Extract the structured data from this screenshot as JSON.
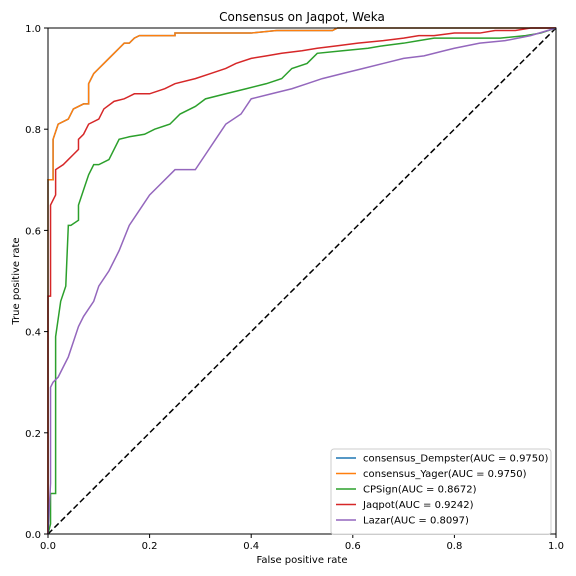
{
  "chart_data": {
    "type": "line",
    "title": "Consensus on Jaqpot, Weka",
    "xlabel": "False positive rate",
    "ylabel": "True positive rate",
    "xlim": [
      0,
      1
    ],
    "ylim": [
      0,
      1
    ],
    "xticks": [
      "0.0",
      "0.2",
      "0.4",
      "0.6",
      "0.8",
      "1.0"
    ],
    "yticks": [
      "0.0",
      "0.2",
      "0.4",
      "0.6",
      "0.8",
      "1.0"
    ],
    "grid": false,
    "legend_position": "lower-right",
    "diagonal": {
      "x": [
        0,
        1
      ],
      "y": [
        0,
        1
      ],
      "color": "#000000",
      "style": "dashed"
    },
    "series": [
      {
        "name": "consensus_Dempster(AUC = 0.9750)",
        "color": "#1f77b4",
        "x": [
          0,
          0,
          0.01,
          0.01,
          0.02,
          0.04,
          0.05,
          0.07,
          0.08,
          0.08,
          0.09,
          0.1,
          0.11,
          0.13,
          0.14,
          0.15,
          0.16,
          0.17,
          0.18,
          0.19,
          0.2,
          0.25,
          0.25,
          0.4,
          0.45,
          0.56,
          0.57,
          0.8,
          1.0
        ],
        "y": [
          0,
          0.7,
          0.7,
          0.78,
          0.81,
          0.82,
          0.84,
          0.85,
          0.85,
          0.89,
          0.91,
          0.92,
          0.93,
          0.95,
          0.96,
          0.97,
          0.97,
          0.98,
          0.985,
          0.985,
          0.985,
          0.985,
          0.99,
          0.99,
          0.995,
          0.995,
          1.0,
          1.0,
          1.0
        ]
      },
      {
        "name": "consensus_Yager(AUC = 0.9750)",
        "color": "#ff7f0e",
        "x": [
          0,
          0,
          0.01,
          0.01,
          0.02,
          0.04,
          0.05,
          0.07,
          0.08,
          0.08,
          0.09,
          0.1,
          0.11,
          0.13,
          0.14,
          0.15,
          0.16,
          0.17,
          0.18,
          0.19,
          0.2,
          0.25,
          0.25,
          0.4,
          0.45,
          0.56,
          0.57,
          0.8,
          1.0
        ],
        "y": [
          0,
          0.7,
          0.7,
          0.78,
          0.81,
          0.82,
          0.84,
          0.85,
          0.85,
          0.89,
          0.91,
          0.92,
          0.93,
          0.95,
          0.96,
          0.97,
          0.97,
          0.98,
          0.985,
          0.985,
          0.985,
          0.985,
          0.99,
          0.99,
          0.995,
          0.995,
          1.0,
          1.0,
          1.0
        ]
      },
      {
        "name": "CPSign(AUC = 0.8672)",
        "color": "#2ca02c",
        "x": [
          0,
          0.005,
          0.005,
          0.015,
          0.015,
          0.025,
          0.035,
          0.04,
          0.045,
          0.06,
          0.06,
          0.07,
          0.08,
          0.09,
          0.1,
          0.12,
          0.14,
          0.16,
          0.19,
          0.21,
          0.24,
          0.26,
          0.29,
          0.31,
          0.35,
          0.39,
          0.43,
          0.46,
          0.48,
          0.51,
          0.53,
          0.58,
          0.63,
          0.66,
          0.7,
          0.73,
          0.76,
          0.8,
          0.89,
          0.94,
          0.97,
          1.0
        ],
        "y": [
          0,
          0.02,
          0.08,
          0.08,
          0.39,
          0.46,
          0.49,
          0.61,
          0.61,
          0.62,
          0.65,
          0.68,
          0.71,
          0.73,
          0.73,
          0.74,
          0.78,
          0.785,
          0.79,
          0.8,
          0.81,
          0.83,
          0.845,
          0.86,
          0.87,
          0.88,
          0.89,
          0.9,
          0.92,
          0.93,
          0.95,
          0.955,
          0.96,
          0.965,
          0.97,
          0.975,
          0.98,
          0.98,
          0.98,
          0.985,
          0.99,
          1.0
        ]
      },
      {
        "name": "Jaqpot(AUC = 0.9242)",
        "color": "#d62728",
        "x": [
          0,
          0,
          0.005,
          0.005,
          0.015,
          0.015,
          0.03,
          0.04,
          0.05,
          0.06,
          0.06,
          0.07,
          0.08,
          0.1,
          0.11,
          0.13,
          0.15,
          0.17,
          0.2,
          0.23,
          0.25,
          0.29,
          0.32,
          0.35,
          0.37,
          0.4,
          0.43,
          0.46,
          0.5,
          0.53,
          0.57,
          0.61,
          0.66,
          0.7,
          0.73,
          0.76,
          0.8,
          0.85,
          0.88,
          0.92,
          0.95,
          1.0
        ],
        "y": [
          0,
          0.47,
          0.47,
          0.65,
          0.67,
          0.72,
          0.73,
          0.74,
          0.75,
          0.76,
          0.78,
          0.79,
          0.81,
          0.82,
          0.84,
          0.855,
          0.86,
          0.87,
          0.87,
          0.88,
          0.89,
          0.9,
          0.91,
          0.92,
          0.93,
          0.94,
          0.945,
          0.95,
          0.955,
          0.96,
          0.965,
          0.97,
          0.975,
          0.98,
          0.985,
          0.985,
          0.99,
          0.99,
          0.995,
          0.995,
          1.0,
          1.0
        ]
      },
      {
        "name": "Lazar(AUC = 0.8097)",
        "color": "#9467bd",
        "x": [
          0,
          0.005,
          0.005,
          0.01,
          0.02,
          0.03,
          0.04,
          0.05,
          0.06,
          0.07,
          0.09,
          0.1,
          0.12,
          0.14,
          0.16,
          0.18,
          0.2,
          0.22,
          0.25,
          0.29,
          0.31,
          0.33,
          0.35,
          0.38,
          0.4,
          0.44,
          0.48,
          0.51,
          0.54,
          0.58,
          0.62,
          0.66,
          0.7,
          0.74,
          0.78,
          0.8,
          0.85,
          0.9,
          0.95,
          1.0
        ],
        "y": [
          0,
          0.1,
          0.29,
          0.3,
          0.31,
          0.33,
          0.35,
          0.38,
          0.41,
          0.43,
          0.46,
          0.49,
          0.52,
          0.56,
          0.61,
          0.64,
          0.67,
          0.69,
          0.72,
          0.72,
          0.75,
          0.78,
          0.81,
          0.83,
          0.86,
          0.87,
          0.88,
          0.89,
          0.9,
          0.91,
          0.92,
          0.93,
          0.94,
          0.945,
          0.955,
          0.96,
          0.97,
          0.975,
          0.985,
          1.0
        ]
      }
    ]
  }
}
